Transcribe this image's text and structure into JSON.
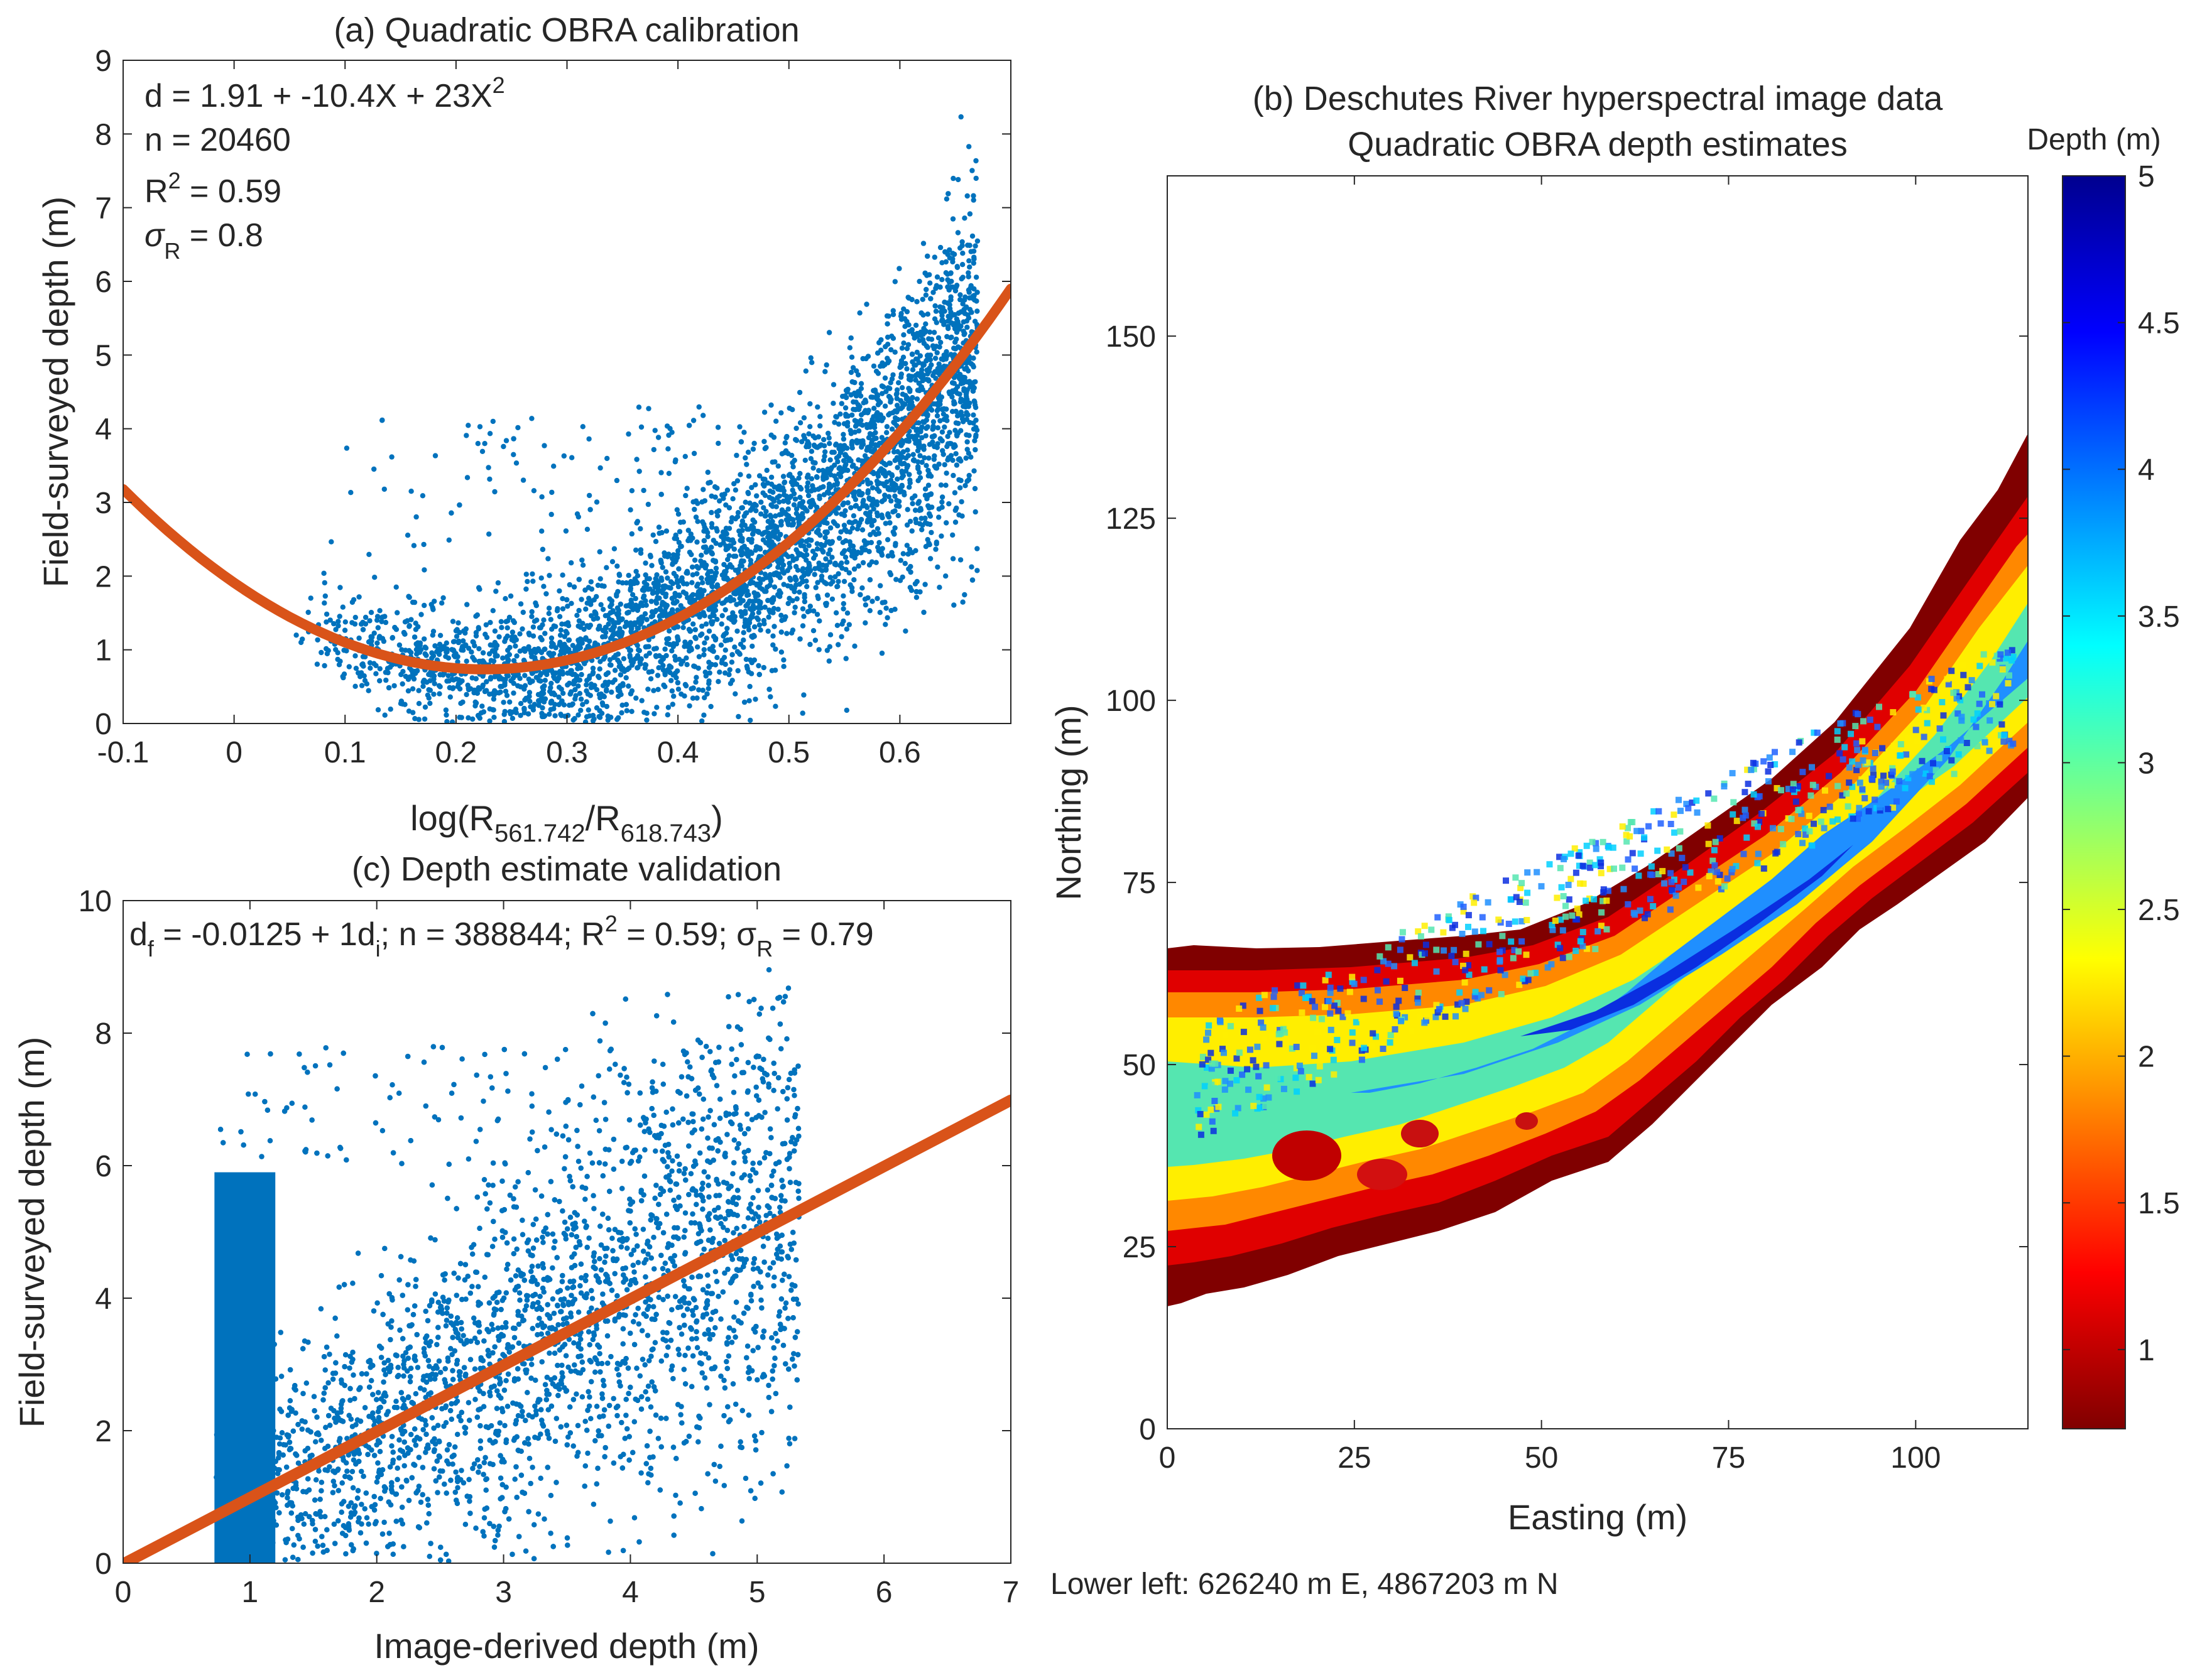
{
  "chart_data": [
    {
      "panel": "a",
      "type": "scatter",
      "title": "(a) Quadratic OBRA calibration",
      "xlabel_parts": [
        "log(R",
        "561.742",
        "/R",
        "618.743",
        ")"
      ],
      "ylabel": "Field-surveyed depth (m)",
      "xlim": [
        -0.1,
        0.7
      ],
      "ylim": [
        0,
        9
      ],
      "xticks": [
        -0.1,
        0,
        0.1,
        0.2,
        0.3,
        0.4,
        0.5,
        0.6
      ],
      "xtick_labels": [
        "-0.1",
        "0",
        "0.1",
        "0.2",
        "0.3",
        "0.4",
        "0.5",
        "0.6"
      ],
      "yticks": [
        0,
        1,
        2,
        3,
        4,
        5,
        6,
        7,
        8,
        9
      ],
      "ytick_labels": [
        "0",
        "1",
        "2",
        "3",
        "4",
        "5",
        "6",
        "7",
        "8",
        "9"
      ],
      "annotations": {
        "eq_main": "d = 1.91 + -10.4X + 23X",
        "eq_sup": "2",
        "n": "n = 20460",
        "r2_pre": "R",
        "r2_sup": "2",
        "r2_post": " = 0.59",
        "sigma_sym": "σ",
        "sigma_sub": "R",
        "sigma_post": " = 0.8"
      },
      "fit": {
        "a": 1.91,
        "b": -10.4,
        "c": 23
      },
      "series": [
        {
          "name": "observations",
          "color": "#0072BD"
        },
        {
          "name": "quadratic fit",
          "color": "#D95319"
        }
      ]
    },
    {
      "panel": "b",
      "type": "heatmap",
      "title_line1": "(b) Deschutes River hyperspectral image data",
      "title_line2": "Quadratic OBRA depth estimates",
      "xlabel": "Easting (m)",
      "ylabel": "Northing (m)",
      "xlim": [
        0,
        115
      ],
      "ylim": [
        0,
        172
      ],
      "xticks": [
        0,
        25,
        50,
        75,
        100
      ],
      "xtick_labels": [
        "0",
        "25",
        "50",
        "75",
        "100"
      ],
      "yticks": [
        0,
        25,
        50,
        75,
        100,
        125,
        150
      ],
      "ytick_labels": [
        "0",
        "25",
        "50",
        "75",
        "100",
        "125",
        "150"
      ],
      "colorbar": {
        "label": "Depth (m)",
        "range": [
          0.73,
          5
        ],
        "ticks": [
          1,
          1.5,
          2,
          2.5,
          3,
          3.5,
          4,
          4.5,
          5
        ],
        "tick_labels": [
          "1",
          "1.5",
          "2",
          "2.5",
          "3",
          "3.5",
          "4",
          "4.5",
          "5"
        ],
        "colormap": "jet (reversed)"
      },
      "footnote": "Lower left: 626240 m E, 4867203 m N"
    },
    {
      "panel": "c",
      "type": "scatter",
      "title": "(c) Depth estimate validation",
      "xlabel": "Image-derived depth (m)",
      "ylabel": "Field-surveyed depth (m)",
      "xlim": [
        0,
        7
      ],
      "ylim": [
        0,
        10
      ],
      "xticks": [
        0,
        1,
        2,
        3,
        4,
        5,
        6,
        7
      ],
      "xtick_labels": [
        "0",
        "1",
        "2",
        "3",
        "4",
        "5",
        "6",
        "7"
      ],
      "yticks": [
        0,
        2,
        4,
        6,
        8,
        10
      ],
      "ytick_labels": [
        "0",
        "2",
        "4",
        "6",
        "8",
        "10"
      ],
      "annotations": {
        "a1": "d",
        "a1_sub": "f",
        "a2": " = -0.0125 + 1d",
        "a2_sub": "i",
        "a3": "; n = 388844; R",
        "a3_sup": "2",
        "a4": " = 0.59; σ",
        "a4_sub": "R",
        "a5": " = 0.79"
      },
      "fit": {
        "intercept": -0.0125,
        "slope": 1
      },
      "series": [
        {
          "name": "observations",
          "color": "#0072BD"
        },
        {
          "name": "regression line",
          "color": "#D95319"
        }
      ]
    }
  ]
}
